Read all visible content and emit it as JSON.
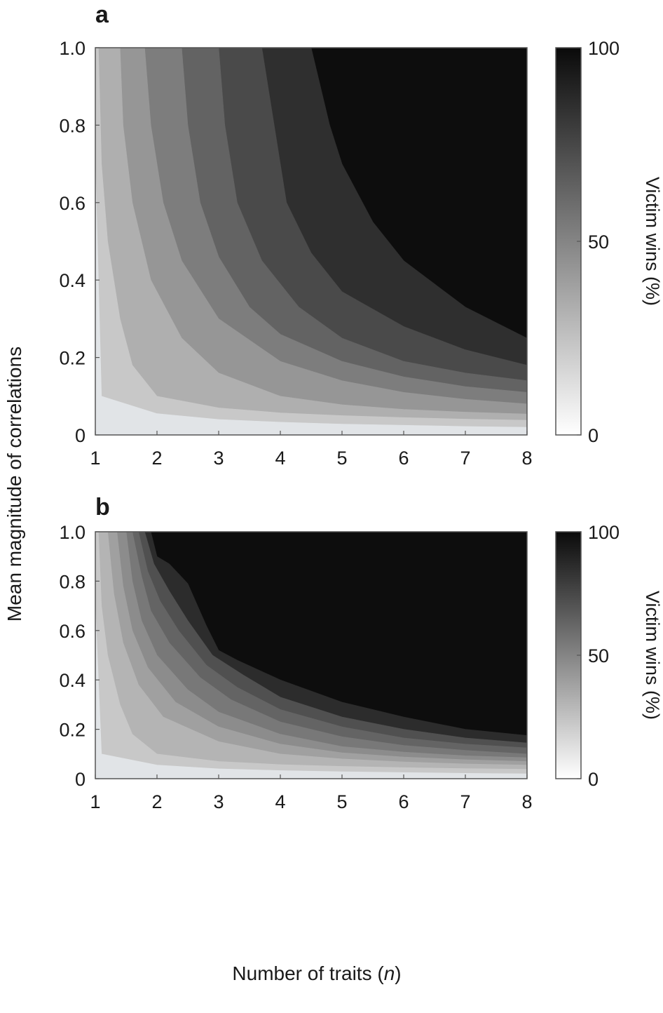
{
  "figure": {
    "ylabel": "Mean magnitude of correlations",
    "xlabel_prefix": "Number of traits (",
    "xlabel_var": "n",
    "xlabel_suffix": ")"
  },
  "chart_data": [
    {
      "panel": "a",
      "type": "heatmap",
      "subtype": "filled-contour",
      "xlim": [
        1,
        8
      ],
      "ylim": [
        0,
        1.0
      ],
      "x_ticks": [
        1,
        2,
        3,
        4,
        5,
        6,
        7,
        8
      ],
      "y_ticks": [
        0,
        0.2,
        0.4,
        0.6,
        0.8,
        1.0
      ],
      "y_tick_labels": [
        "0",
        "0.2",
        "0.4",
        "0.6",
        "0.8",
        "1.0"
      ],
      "colorbar": {
        "label": "Victim wins (%)",
        "range": [
          0,
          100
        ],
        "ticks": [
          0,
          50,
          100
        ],
        "low_color": "#ffffff",
        "high_color": "#0a0a0a"
      },
      "levels": [
        {
          "value": 6,
          "color": "#e1e4e7",
          "boundary": [
            [
              1,
              0.7
            ],
            [
              1.05,
              0.4
            ],
            [
              1.1,
              0.1
            ],
            [
              2,
              0.055
            ],
            [
              3,
              0.04
            ],
            [
              4,
              0.033
            ],
            [
              5,
              0.028
            ],
            [
              6,
              0.025
            ],
            [
              7,
              0.022
            ],
            [
              8,
              0.02
            ]
          ]
        },
        {
          "value": 20,
          "color": "#c8c8c8",
          "boundary": [
            [
              1.05,
              1.0
            ],
            [
              1.1,
              0.7
            ],
            [
              1.2,
              0.5
            ],
            [
              1.4,
              0.3
            ],
            [
              1.6,
              0.18
            ],
            [
              2,
              0.1
            ],
            [
              3,
              0.07
            ],
            [
              4,
              0.057
            ],
            [
              5,
              0.05
            ],
            [
              6,
              0.045
            ],
            [
              7,
              0.041
            ],
            [
              8,
              0.038
            ]
          ]
        },
        {
          "value": 35,
          "color": "#afafaf",
          "boundary": [
            [
              1.4,
              1.0
            ],
            [
              1.45,
              0.8
            ],
            [
              1.6,
              0.6
            ],
            [
              1.9,
              0.4
            ],
            [
              2.4,
              0.25
            ],
            [
              3,
              0.16
            ],
            [
              4,
              0.1
            ],
            [
              5,
              0.078
            ],
            [
              6,
              0.066
            ],
            [
              7,
              0.059
            ],
            [
              8,
              0.054
            ]
          ]
        },
        {
          "value": 50,
          "color": "#969696",
          "boundary": [
            [
              1.8,
              1.0
            ],
            [
              1.9,
              0.8
            ],
            [
              2.1,
              0.6
            ],
            [
              2.4,
              0.45
            ],
            [
              3,
              0.3
            ],
            [
              4,
              0.19
            ],
            [
              5,
              0.14
            ],
            [
              6,
              0.11
            ],
            [
              7,
              0.092
            ],
            [
              8,
              0.08
            ]
          ]
        },
        {
          "value": 62,
          "color": "#7d7d7d",
          "boundary": [
            [
              2.4,
              1.0
            ],
            [
              2.5,
              0.8
            ],
            [
              2.7,
              0.6
            ],
            [
              3,
              0.46
            ],
            [
              3.5,
              0.33
            ],
            [
              4,
              0.26
            ],
            [
              5,
              0.19
            ],
            [
              6,
              0.15
            ],
            [
              7,
              0.125
            ],
            [
              8,
              0.11
            ]
          ]
        },
        {
          "value": 74,
          "color": "#636363",
          "boundary": [
            [
              3.0,
              1.0
            ],
            [
              3.1,
              0.8
            ],
            [
              3.3,
              0.6
            ],
            [
              3.7,
              0.45
            ],
            [
              4.3,
              0.33
            ],
            [
              5,
              0.25
            ],
            [
              6,
              0.19
            ],
            [
              7,
              0.16
            ],
            [
              8,
              0.14
            ]
          ]
        },
        {
          "value": 84,
          "color": "#4a4a4a",
          "boundary": [
            [
              3.7,
              1.0
            ],
            [
              3.9,
              0.8
            ],
            [
              4.1,
              0.6
            ],
            [
              4.5,
              0.47
            ],
            [
              5,
              0.37
            ],
            [
              6,
              0.28
            ],
            [
              7,
              0.22
            ],
            [
              8,
              0.18
            ]
          ]
        },
        {
          "value": 92,
          "color": "#2f2f2f",
          "boundary": [
            [
              4.5,
              1.0
            ],
            [
              4.8,
              0.8
            ],
            [
              5,
              0.7
            ],
            [
              5.5,
              0.55
            ],
            [
              6,
              0.45
            ],
            [
              7,
              0.33
            ],
            [
              8,
              0.25
            ]
          ]
        },
        {
          "value": 98,
          "color": "#0d0d0d",
          "boundary": []
        }
      ]
    },
    {
      "panel": "b",
      "type": "heatmap",
      "subtype": "filled-contour",
      "xlim": [
        1,
        8
      ],
      "ylim": [
        0,
        1.0
      ],
      "x_ticks": [
        1,
        2,
        3,
        4,
        5,
        6,
        7,
        8
      ],
      "y_ticks": [
        0,
        0.2,
        0.4,
        0.6,
        0.8,
        1.0
      ],
      "y_tick_labels": [
        "0",
        "0.2",
        "0.4",
        "0.6",
        "0.8",
        "1.0"
      ],
      "colorbar": {
        "label": "Victim wins (%)",
        "range": [
          0,
          100
        ],
        "ticks": [
          0,
          50,
          100
        ],
        "low_color": "#ffffff",
        "high_color": "#0a0a0a"
      },
      "levels": [
        {
          "value": 6,
          "color": "#e1e4e7",
          "boundary": [
            [
              1,
              0.7
            ],
            [
              1.05,
              0.4
            ],
            [
              1.1,
              0.1
            ],
            [
              2,
              0.055
            ],
            [
              3,
              0.04
            ],
            [
              4,
              0.033
            ],
            [
              5,
              0.028
            ],
            [
              6,
              0.025
            ],
            [
              7,
              0.022
            ],
            [
              8,
              0.02
            ]
          ]
        },
        {
          "value": 20,
          "color": "#c8c8c8",
          "boundary": [
            [
              1.05,
              1.0
            ],
            [
              1.1,
              0.7
            ],
            [
              1.2,
              0.5
            ],
            [
              1.4,
              0.3
            ],
            [
              1.6,
              0.18
            ],
            [
              2,
              0.1
            ],
            [
              3,
              0.07
            ],
            [
              4,
              0.057
            ],
            [
              5,
              0.05
            ],
            [
              6,
              0.045
            ],
            [
              7,
              0.041
            ],
            [
              8,
              0.038
            ]
          ]
        },
        {
          "value": 30,
          "color": "#b4b4b4",
          "boundary": [
            [
              1.2,
              1.0
            ],
            [
              1.3,
              0.75
            ],
            [
              1.45,
              0.55
            ],
            [
              1.7,
              0.38
            ],
            [
              2.1,
              0.25
            ],
            [
              3,
              0.15
            ],
            [
              4,
              0.1
            ],
            [
              5,
              0.08
            ],
            [
              6,
              0.068
            ],
            [
              7,
              0.06
            ],
            [
              8,
              0.055
            ]
          ]
        },
        {
          "value": 40,
          "color": "#a0a0a0",
          "boundary": [
            [
              1.35,
              1.0
            ],
            [
              1.45,
              0.78
            ],
            [
              1.6,
              0.6
            ],
            [
              1.85,
              0.45
            ],
            [
              2.3,
              0.31
            ],
            [
              3,
              0.21
            ],
            [
              4,
              0.14
            ],
            [
              5,
              0.105
            ],
            [
              6,
              0.088
            ],
            [
              7,
              0.077
            ],
            [
              8,
              0.07
            ]
          ]
        },
        {
          "value": 50,
          "color": "#8c8c8c",
          "boundary": [
            [
              1.5,
              1.0
            ],
            [
              1.6,
              0.8
            ],
            [
              1.75,
              0.64
            ],
            [
              2,
              0.5
            ],
            [
              2.5,
              0.36
            ],
            [
              3,
              0.27
            ],
            [
              4,
              0.18
            ],
            [
              5,
              0.13
            ],
            [
              6,
              0.108
            ],
            [
              7,
              0.093
            ],
            [
              8,
              0.085
            ]
          ]
        },
        {
          "value": 60,
          "color": "#787878",
          "boundary": [
            [
              1.6,
              1.0
            ],
            [
              1.75,
              0.82
            ],
            [
              1.9,
              0.68
            ],
            [
              2.2,
              0.55
            ],
            [
              2.7,
              0.41
            ],
            [
              3.2,
              0.32
            ],
            [
              4,
              0.23
            ],
            [
              5,
              0.17
            ],
            [
              6,
              0.135
            ],
            [
              7,
              0.115
            ],
            [
              8,
              0.1
            ]
          ]
        },
        {
          "value": 70,
          "color": "#646464",
          "boundary": [
            [
              1.7,
              1.0
            ],
            [
              1.85,
              0.84
            ],
            [
              2.05,
              0.72
            ],
            [
              2.35,
              0.6
            ],
            [
              2.8,
              0.46
            ],
            [
              3.3,
              0.37
            ],
            [
              4,
              0.28
            ],
            [
              5,
              0.21
            ],
            [
              6,
              0.165
            ],
            [
              7,
              0.14
            ],
            [
              8,
              0.125
            ]
          ]
        },
        {
          "value": 80,
          "color": "#505050",
          "boundary": [
            [
              1.8,
              1.0
            ],
            [
              1.95,
              0.87
            ],
            [
              2.2,
              0.76
            ],
            [
              2.5,
              0.64
            ],
            [
              2.9,
              0.5
            ],
            [
              3.4,
              0.42
            ],
            [
              4,
              0.33
            ],
            [
              5,
              0.25
            ],
            [
              6,
              0.2
            ],
            [
              7,
              0.165
            ],
            [
              8,
              0.145
            ]
          ]
        },
        {
          "value": 90,
          "color": "#2c2c2c",
          "boundary": [
            [
              1.9,
              1.0
            ],
            [
              2.0,
              0.9
            ],
            [
              2.2,
              0.87
            ],
            [
              2.5,
              0.79
            ],
            [
              2.8,
              0.62
            ],
            [
              3,
              0.52
            ],
            [
              3.3,
              0.48
            ],
            [
              4,
              0.4
            ],
            [
              5,
              0.31
            ],
            [
              6,
              0.25
            ],
            [
              7,
              0.2
            ],
            [
              8,
              0.175
            ]
          ]
        },
        {
          "value": 98,
          "color": "#0d0d0d",
          "boundary": []
        }
      ]
    }
  ]
}
